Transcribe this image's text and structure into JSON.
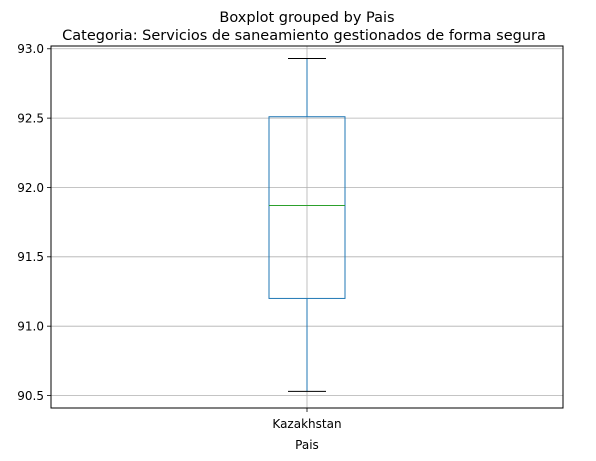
{
  "chart_data": {
    "type": "boxplot",
    "suptitle": "Boxplot grouped by Pais",
    "title": "Categoria: Servicios de saneamiento gestionados de forma segura",
    "xlabel": "Pais",
    "ylabel": "",
    "categories": [
      "Kazakhstan"
    ],
    "boxes": [
      {
        "category": "Kazakhstan",
        "whisker_low": 90.53,
        "q1": 91.2,
        "median": 91.87,
        "q3": 92.51,
        "whisker_high": 92.93
      }
    ],
    "ylim": [
      90.41,
      93.02
    ],
    "yticks": [
      90.5,
      91.0,
      91.5,
      92.0,
      92.5,
      93.0
    ],
    "ytick_labels": [
      "90.5",
      "91.0",
      "91.5",
      "92.0",
      "92.5",
      "93.0"
    ],
    "grid": true,
    "colors": {
      "box": "#1f77b4",
      "median": "#2ca02c",
      "grid": "#b0b0b0",
      "cap": "#000000"
    }
  }
}
